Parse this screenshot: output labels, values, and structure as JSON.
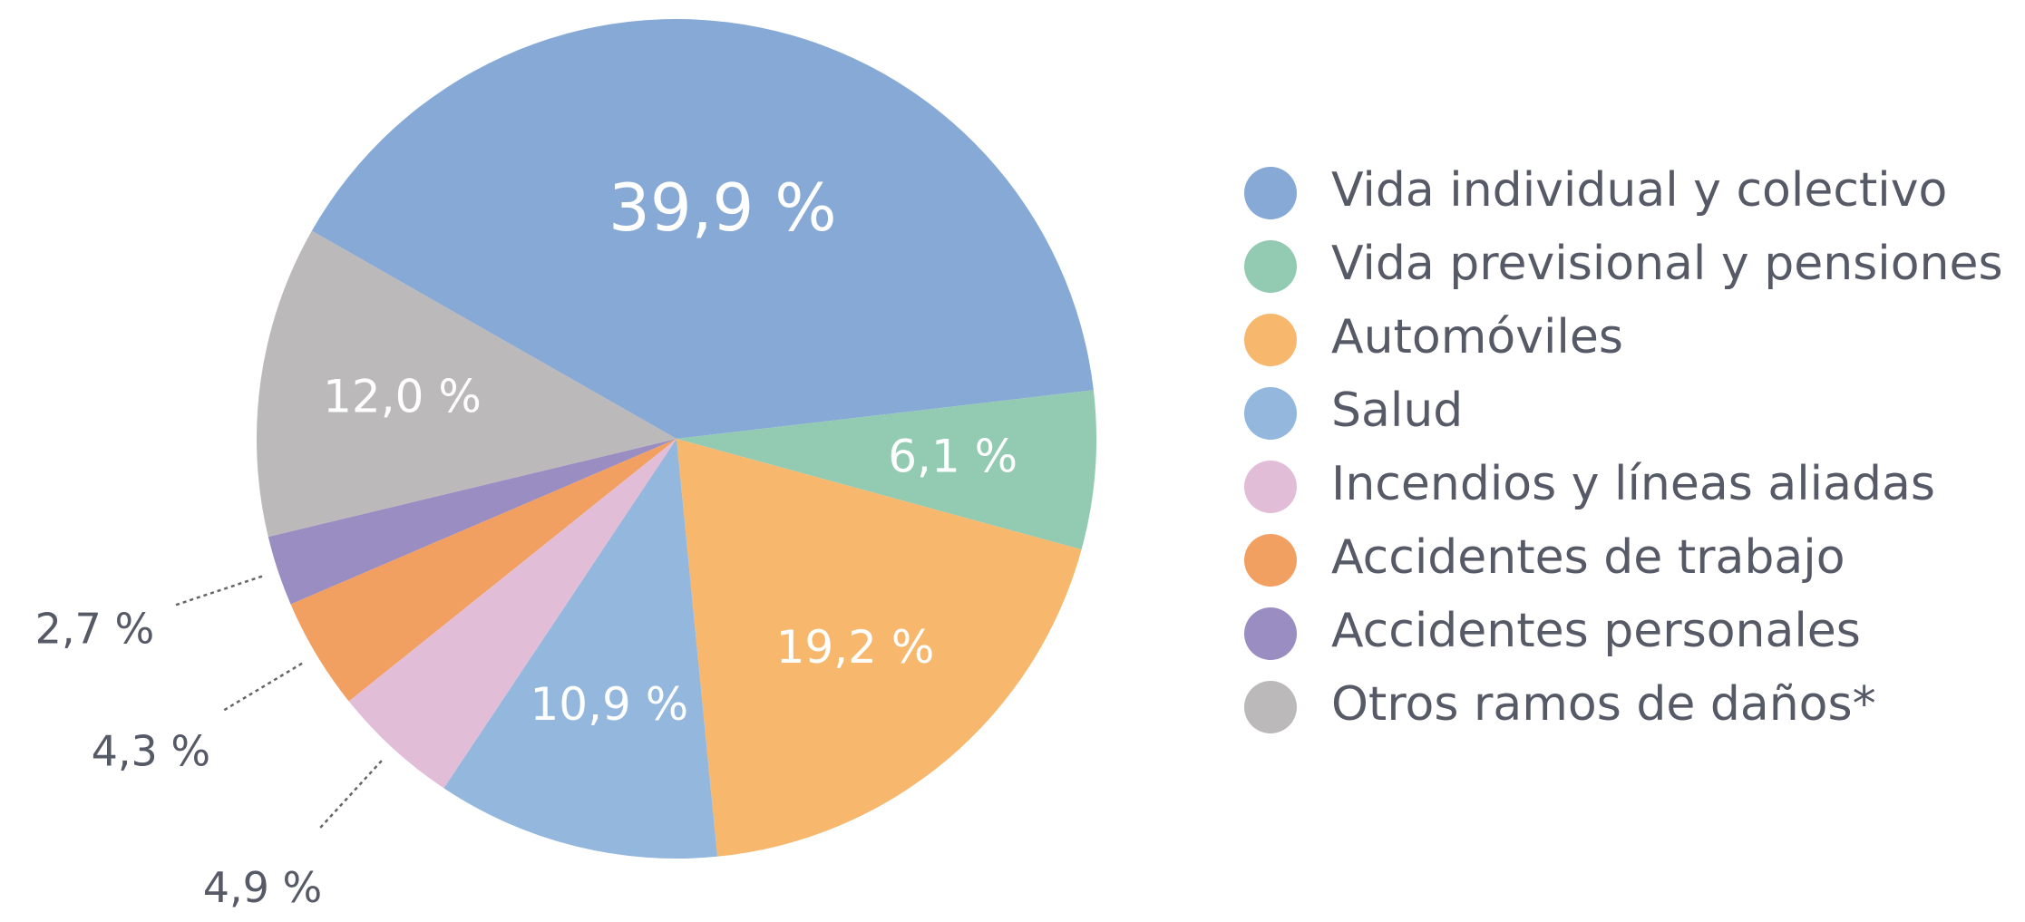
{
  "chart_data": {
    "type": "pie",
    "categories": [
      "Vida individual y colectivo",
      "Vida previsional y pensiones",
      "Automóviles",
      "Salud",
      "Incendios y líneas aliadas",
      "Accidentes de trabajo",
      "Accidentes personales",
      "Otros ramos de daños*"
    ],
    "values": [
      39.9,
      6.1,
      19.2,
      10.9,
      4.9,
      4.3,
      2.7,
      12.0
    ],
    "value_labels": [
      "39,9 %",
      "6,1 %",
      "19,2 %",
      "10,9 %",
      "4,9 %",
      "4,3 %",
      "2,7 %",
      "12,0 %"
    ],
    "colors": [
      "#87a9d6",
      "#93cbb2",
      "#f7b86e",
      "#93b7dd",
      "#e2bdd8",
      "#f2a062",
      "#9a8dc1",
      "#bbb9ba"
    ],
    "legend": "right"
  }
}
